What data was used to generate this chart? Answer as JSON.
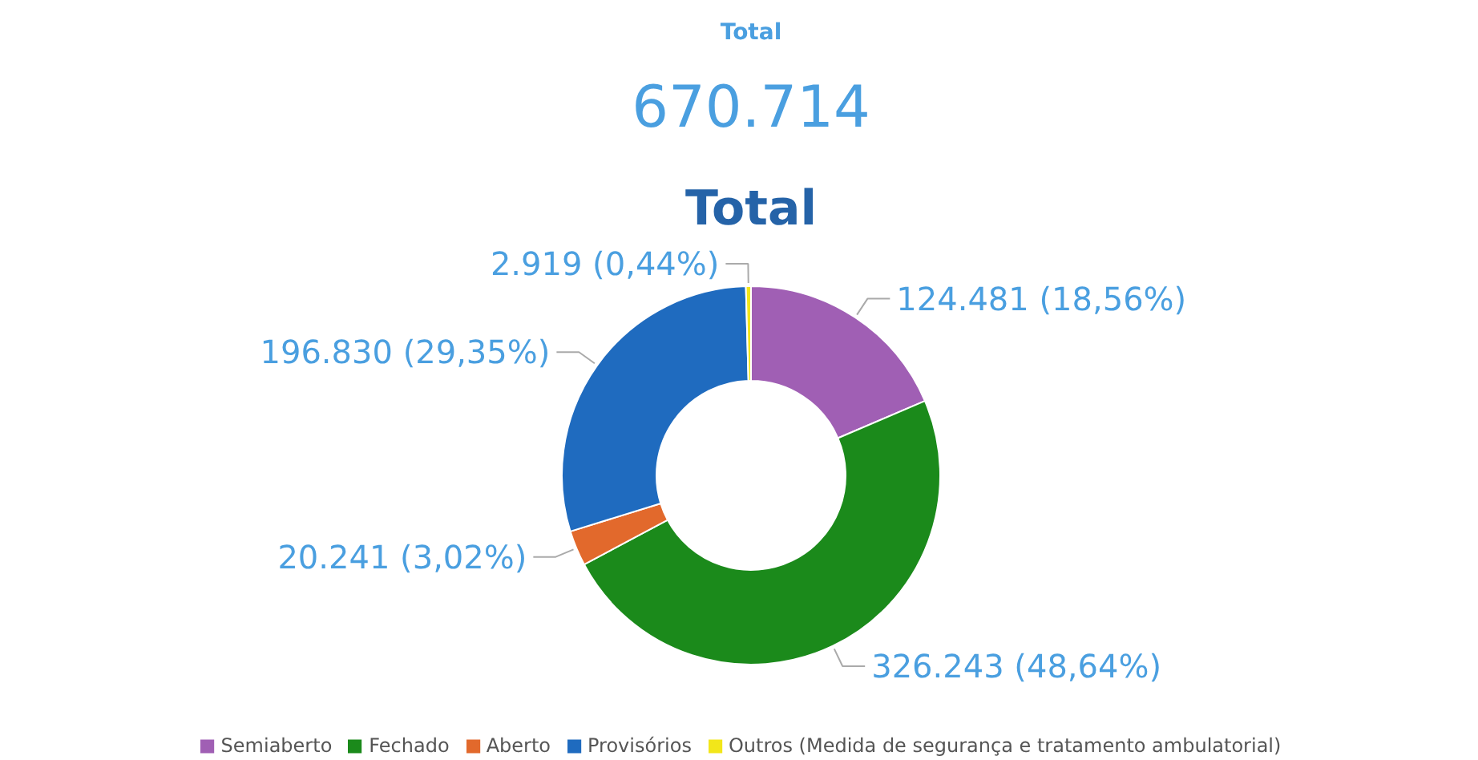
{
  "chart_data": {
    "type": "donut",
    "title": "Total",
    "annotations": [
      "Total",
      "670.714"
    ],
    "categories": [
      "Semiaberto",
      "Fechado",
      "Aberto",
      "Provisórios",
      "Outros (Medida de segurança e tratamento ambulatorial)"
    ],
    "values": [
      124481,
      326243,
      20241,
      196830,
      2919
    ],
    "colors": [
      "#a05fb4",
      "#1b8a1b",
      "#e2692c",
      "#1f6bbf",
      "#f2e61a"
    ],
    "value_labels": [
      "124.481 (18,56%)",
      "326.243 (48,64%)",
      "20.241 (3,02%)",
      "196.830 (29,35%)",
      "2.919 (0,44%)"
    ],
    "legend": "bottom"
  }
}
